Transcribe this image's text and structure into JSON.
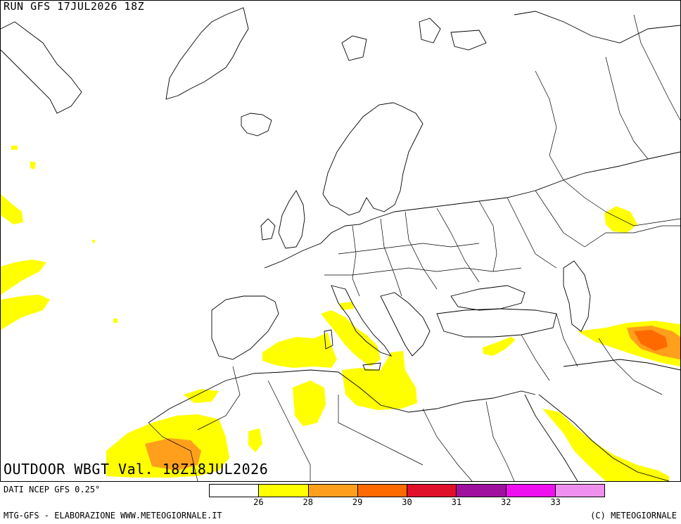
{
  "header": {
    "run_label": "RUN GFS 17JUL2026 18Z"
  },
  "map": {
    "title": "OUTDOOR WBGT Val. 18Z18JUL2026",
    "land_fill": "#ffffff",
    "border_color": "#000000"
  },
  "footer": {
    "source": "DATI NCEP GFS 0.25°",
    "credit": "MTG-GFS - ELABORAZIONE WWW.METEOGIORNALE.IT",
    "copyright": "(C) METEOGIORNALE"
  },
  "legend": {
    "colors": [
      "#ffffff",
      "#ffff00",
      "#ff9f1c",
      "#ff6a00",
      "#e0102a",
      "#a0109f",
      "#ee10ee",
      "#f090ee"
    ],
    "ticks": [
      "26",
      "28",
      "29",
      "30",
      "31",
      "32",
      "33"
    ]
  }
}
